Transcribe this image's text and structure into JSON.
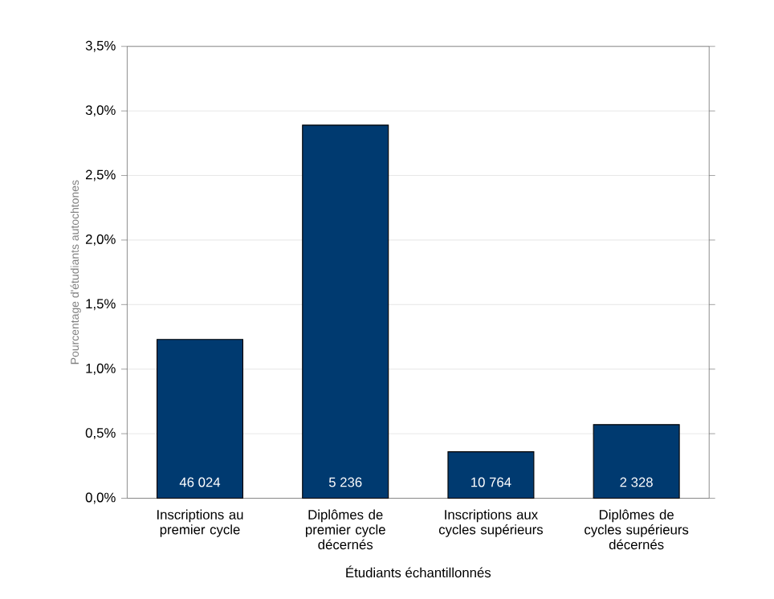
{
  "chart_data": {
    "type": "bar",
    "xlabel": "Étudiants échantillonnés",
    "ylabel": "Pourcentage d'étudiants autochtones",
    "categories": [
      "Inscriptions au premier cycle",
      "Diplômes de premier cycle décernés",
      "Inscriptions aux cycles supérieurs",
      "Diplômes de cycles supérieurs décernés"
    ],
    "values": [
      1.23,
      2.89,
      0.36,
      0.57
    ],
    "color": "#003a70",
    "ylim": [
      0,
      3.5
    ],
    "yticks": [
      {
        "value": 0,
        "label": "0,0%"
      },
      {
        "value": 0.5,
        "label": "0,5%"
      },
      {
        "value": 1,
        "label": "1,0%"
      },
      {
        "value": 1.5,
        "label": "1,5%"
      },
      {
        "value": 2,
        "label": "2,0%"
      },
      {
        "value": 2.5,
        "label": "2,5%"
      },
      {
        "value": 3,
        "label": "3,0%"
      },
      {
        "value": 3.5,
        "label": "3,5%"
      }
    ],
    "grid": "y",
    "annotations": [
      "46 024",
      "5 236",
      "10 764",
      "2 328"
    ]
  }
}
